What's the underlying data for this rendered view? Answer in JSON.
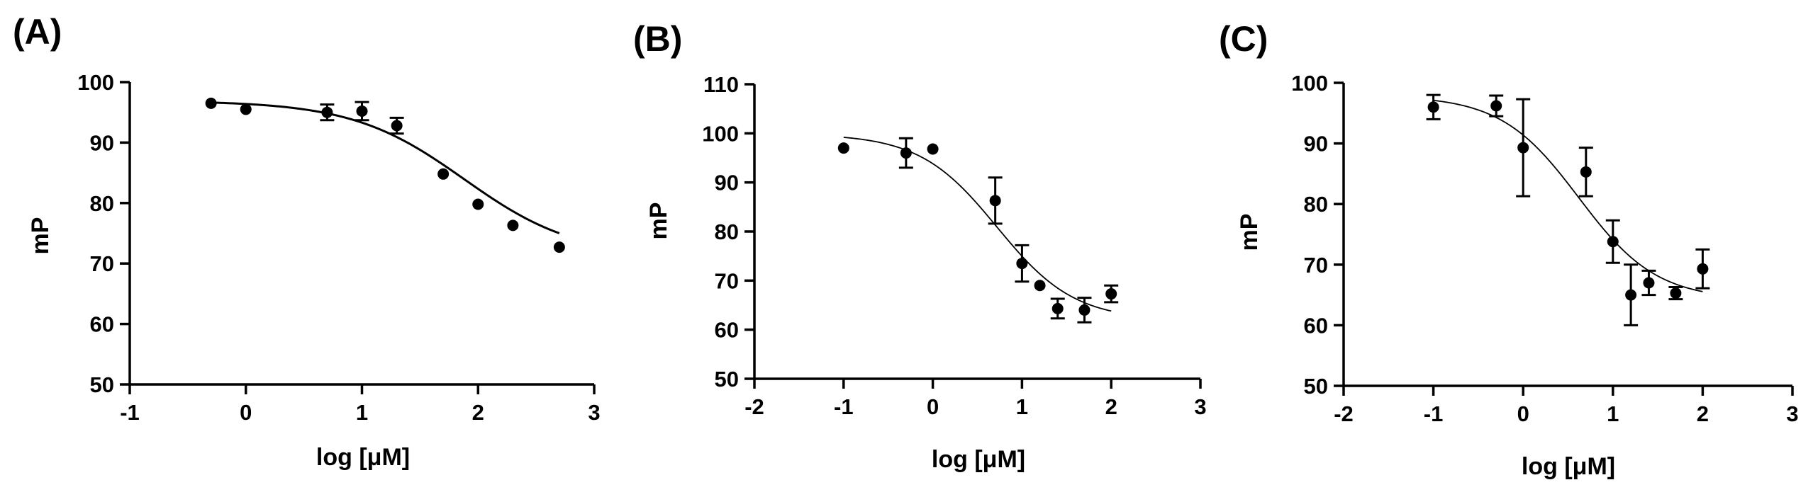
{
  "figure": {
    "panels": [
      "(A)",
      "(B)",
      "(C)"
    ]
  },
  "chart_data": [
    {
      "type": "scatter",
      "panel_label": "(A)",
      "title": "",
      "xlabel": "log [μM]",
      "ylabel": "mP",
      "xlim": [
        -1,
        3
      ],
      "ylim": [
        50,
        100
      ],
      "xticks": [
        "-1",
        "0",
        "1",
        "2",
        "3"
      ],
      "yticks": [
        "50",
        "60",
        "70",
        "80",
        "90",
        "100"
      ],
      "grid": false,
      "series": [
        {
          "name": "data",
          "x": [
            -0.3,
            0.0,
            0.7,
            1.0,
            1.3,
            1.7,
            2.0,
            2.3,
            2.7
          ],
          "y": [
            96.5,
            95.5,
            95.0,
            95.2,
            92.8,
            84.8,
            79.8,
            76.3,
            72.7
          ],
          "err": [
            0.5,
            0.5,
            1.3,
            1.5,
            1.3,
            0.5,
            0.5,
            0.5,
            0.4
          ]
        }
      ],
      "fit": {
        "top": 96.9,
        "bottom": 71.0,
        "logec50": 1.88,
        "hill": -0.9,
        "stroke_width": 3
      }
    },
    {
      "type": "scatter",
      "panel_label": "(B)",
      "title": "",
      "xlabel": "log [μM]",
      "ylabel": "mP",
      "xlim": [
        -2,
        3
      ],
      "ylim": [
        50,
        110
      ],
      "xticks": [
        "-2",
        "-1",
        "0",
        "1",
        "2",
        "3"
      ],
      "yticks": [
        "50",
        "60",
        "70",
        "80",
        "90",
        "100",
        "110"
      ],
      "grid": false,
      "series": [
        {
          "name": "data",
          "x": [
            -1.0,
            -0.3,
            0.0,
            0.7,
            1.0,
            1.2,
            1.4,
            1.7,
            2.0
          ],
          "y": [
            97.0,
            96.0,
            96.8,
            86.3,
            73.5,
            69.0,
            64.3,
            64.0,
            67.3
          ],
          "err": [
            0.5,
            3.0,
            0.5,
            4.7,
            3.7,
            0.5,
            2.0,
            2.5,
            1.7
          ]
        }
      ],
      "fit": {
        "top": 99.9,
        "bottom": 61.9,
        "logec50": 0.72,
        "hill": -1.0,
        "stroke_width": 1.8
      }
    },
    {
      "type": "scatter",
      "panel_label": "(C)",
      "title": "",
      "xlabel": "log [μM]",
      "ylabel": "mP",
      "xlim": [
        -2,
        3
      ],
      "ylim": [
        50,
        100
      ],
      "xticks": [
        "-2",
        "-1",
        "0",
        "1",
        "2",
        "3"
      ],
      "yticks": [
        "50",
        "60",
        "70",
        "80",
        "90",
        "100"
      ],
      "grid": false,
      "series": [
        {
          "name": "data",
          "x": [
            -1.0,
            -0.3,
            0.0,
            0.7,
            1.0,
            1.2,
            1.4,
            1.7,
            2.0
          ],
          "y": [
            96.0,
            96.2,
            89.3,
            85.3,
            73.8,
            65.0,
            67.0,
            65.3,
            69.3
          ],
          "err": [
            2.0,
            1.7,
            8.0,
            4.0,
            3.5,
            5.0,
            2.0,
            1.0,
            3.2
          ]
        }
      ],
      "fit": {
        "top": 97.9,
        "bottom": 64.2,
        "logec50": 0.62,
        "hill": -1.0,
        "stroke_width": 1.8
      }
    }
  ]
}
